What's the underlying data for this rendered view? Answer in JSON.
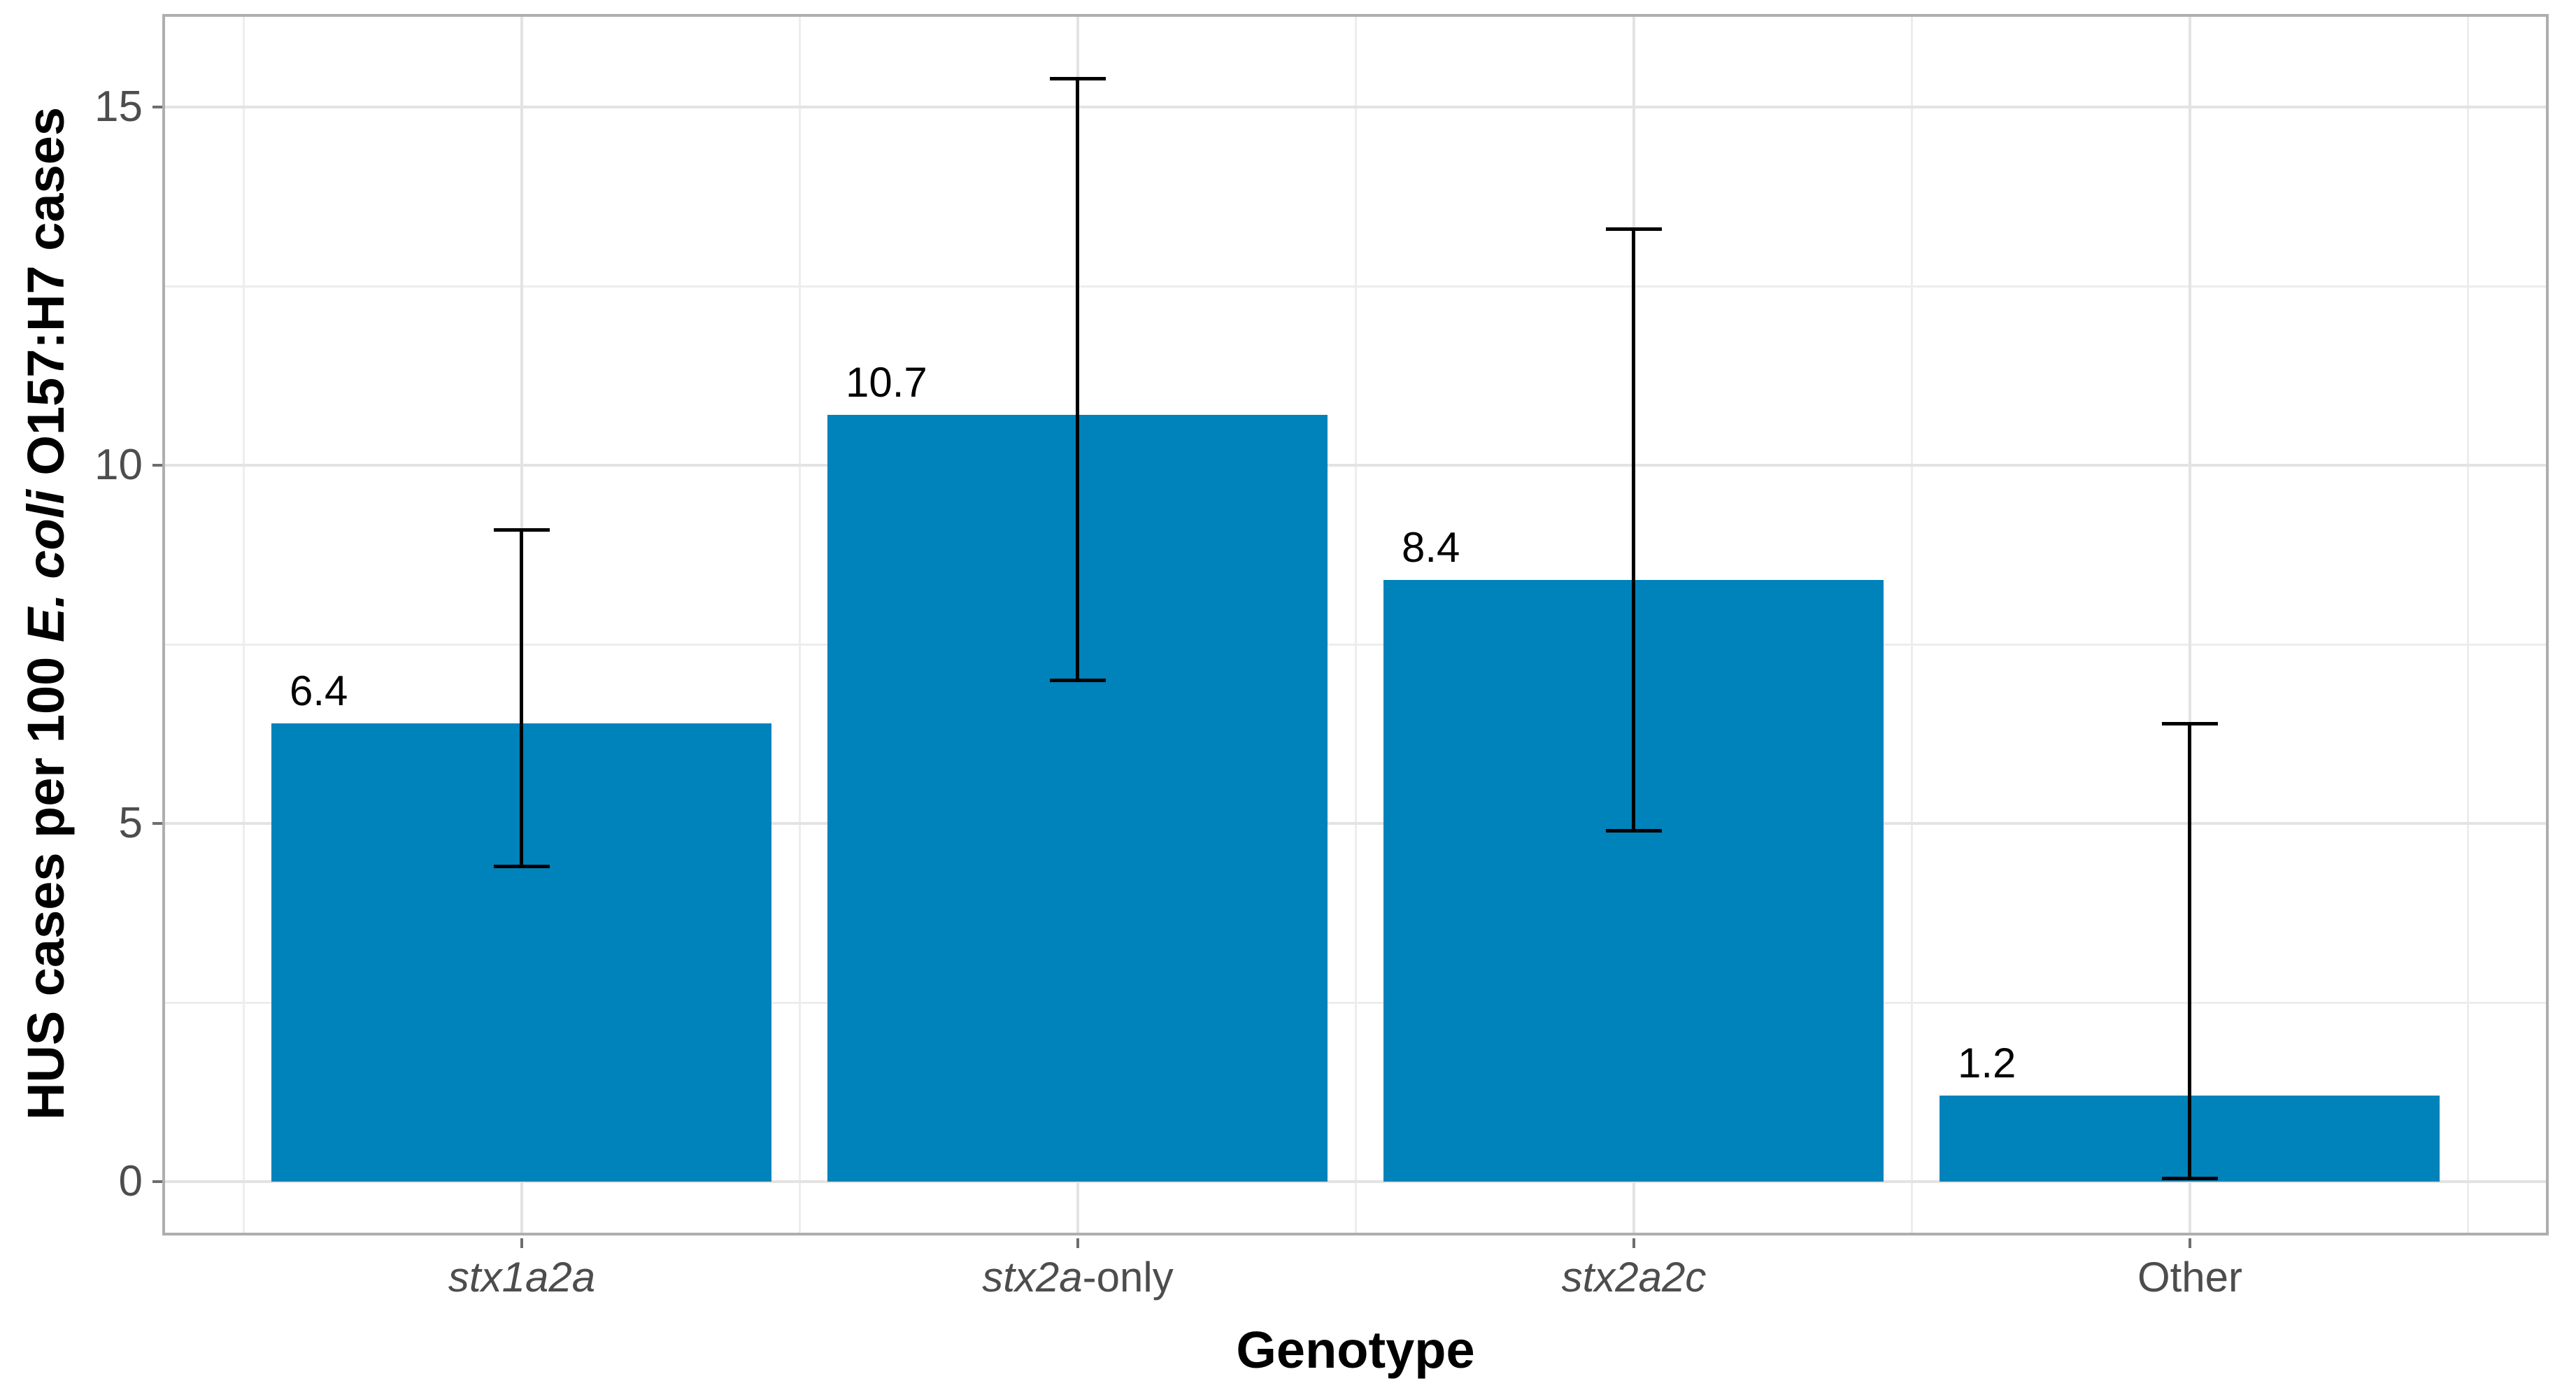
{
  "chart_data": {
    "type": "bar",
    "title": "",
    "xlabel": "Genotype",
    "ylabel": "HUS cases per 100 E. coli O157:H7 cases",
    "ylabel_segments": [
      {
        "text": "HUS cases per 100 ",
        "italic": false
      },
      {
        "text": "E. coli",
        "italic": true
      },
      {
        "text": " O157:H7 cases",
        "italic": false
      }
    ],
    "categories": [
      "stx1a2a",
      "stx2a-only",
      "stx2a2c",
      "Other"
    ],
    "category_segments": [
      [
        {
          "text": "stx1a2a",
          "italic": true
        }
      ],
      [
        {
          "text": "stx2a",
          "italic": true
        },
        {
          "text": "-only",
          "italic": false
        }
      ],
      [
        {
          "text": "stx2a2c",
          "italic": true
        }
      ],
      [
        {
          "text": "Other",
          "italic": false
        }
      ]
    ],
    "values": [
      6.4,
      10.7,
      8.4,
      1.2
    ],
    "bar_labels": [
      "6.4",
      "10.7",
      "8.4",
      "1.2"
    ],
    "error_low": [
      4.4,
      7.0,
      4.9,
      0.05
    ],
    "error_high": [
      9.1,
      15.4,
      13.3,
      6.4
    ],
    "yticks": [
      0,
      5,
      10,
      15
    ],
    "ytick_labels": [
      "0",
      "5",
      "10",
      "15"
    ],
    "yticks_minor": [
      2.5,
      7.5,
      12.5
    ],
    "ylim": [
      -0.75,
      16.3
    ],
    "grid": true,
    "legend": false,
    "bar_color": "#0082BA",
    "errorbar_color": "#000000",
    "label_color": "#000000"
  },
  "style": {
    "background": "#FFFFFF",
    "grid_major_color": "#E3E3E3",
    "grid_minor_color": "#EDEDED",
    "panel_border_color": "#AEAEAE",
    "tick_color": "#6E6E6E",
    "tick_label_color": "#4D4D4D",
    "axis_title_color": "#000000"
  }
}
